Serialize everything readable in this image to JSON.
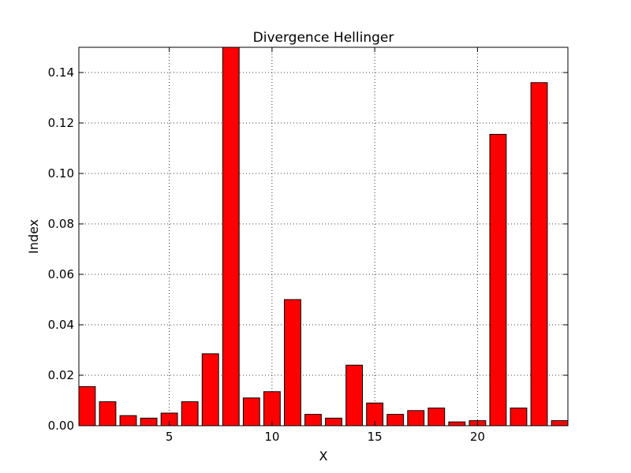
{
  "chart_data": {
    "type": "bar",
    "title": "Divergence Hellinger",
    "xlabel": "X",
    "ylabel": "Index",
    "bar_color": "#ff0000",
    "edge_color": "#000000",
    "grid": true,
    "xlim": [
      0.6,
      24.4
    ],
    "ylim": [
      0,
      0.15
    ],
    "xticks": [
      5,
      10,
      15,
      20
    ],
    "yticks": [
      0.0,
      0.02,
      0.04,
      0.06,
      0.08,
      0.1,
      0.12,
      0.14
    ],
    "ytick_labels": [
      "0.00",
      "0.02",
      "0.04",
      "0.06",
      "0.08",
      "0.10",
      "0.12",
      "0.14"
    ],
    "bar_width": 0.8,
    "x": [
      1,
      2,
      3,
      4,
      5,
      6,
      7,
      8,
      9,
      10,
      11,
      12,
      13,
      14,
      15,
      16,
      17,
      18,
      19,
      20,
      21,
      22,
      23,
      24
    ],
    "values": [
      0.0155,
      0.0095,
      0.004,
      0.003,
      0.005,
      0.0095,
      0.0285,
      0.15,
      0.011,
      0.0135,
      0.05,
      0.0045,
      0.003,
      0.024,
      0.009,
      0.0045,
      0.006,
      0.007,
      0.0015,
      0.002,
      0.1155,
      0.007,
      0.136,
      0.002
    ]
  }
}
